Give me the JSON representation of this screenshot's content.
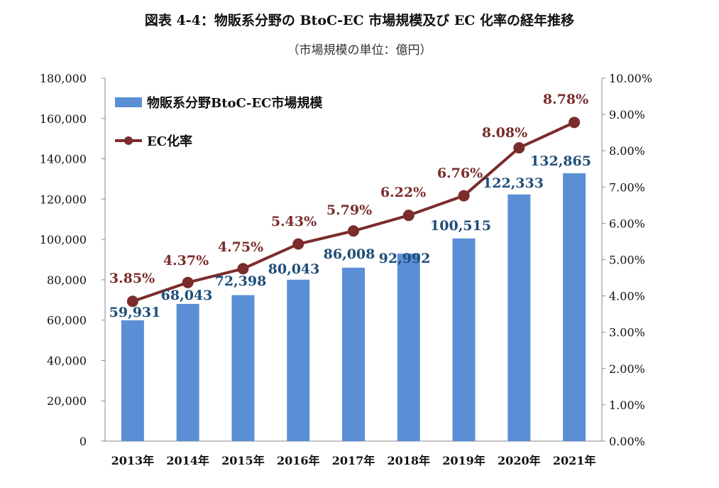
{
  "chart_data": {
    "type": "bar+line",
    "title": "図表 4-4：物販系分野の BtoC-EC 市場規模及び EC 化率の経年推移",
    "subtitle": "（市場規模の単位：億円）",
    "categories": [
      "2013年",
      "2014年",
      "2015年",
      "2016年",
      "2017年",
      "2018年",
      "2019年",
      "2020年",
      "2021年"
    ],
    "series": [
      {
        "name": "物販系分野BtoC-EC市場規模",
        "type": "bar",
        "axis": "left",
        "color": "#5b8fd5",
        "values": [
          59931,
          68043,
          72398,
          80043,
          86008,
          92992,
          100515,
          122333,
          132865
        ],
        "labels": [
          "59,931",
          "68,043",
          "72,398",
          "80,043",
          "86,008",
          "92,992",
          "100,515",
          "122,333",
          "132,865"
        ]
      },
      {
        "name": "EC化率",
        "type": "line",
        "axis": "right",
        "color": "#7b2c2c",
        "values": [
          3.85,
          4.37,
          4.75,
          5.43,
          5.79,
          6.22,
          6.76,
          8.08,
          8.78
        ],
        "labels": [
          "3.85%",
          "4.37%",
          "4.75%",
          "5.43%",
          "5.79%",
          "6.22%",
          "6.76%",
          "8.08%",
          "8.78%"
        ]
      }
    ],
    "left_axis": {
      "min": 0,
      "max": 180000,
      "step": 20000,
      "ticks": [
        "0",
        "20,000",
        "40,000",
        "60,000",
        "80,000",
        "100,000",
        "120,000",
        "140,000",
        "160,000",
        "180,000"
      ]
    },
    "right_axis": {
      "min": 0,
      "max": 10,
      "step": 1,
      "ticks": [
        "0.00%",
        "1.00%",
        "2.00%",
        "3.00%",
        "4.00%",
        "5.00%",
        "6.00%",
        "7.00%",
        "8.00%",
        "9.00%",
        "10.00%"
      ]
    },
    "legend_position": "top-left"
  }
}
